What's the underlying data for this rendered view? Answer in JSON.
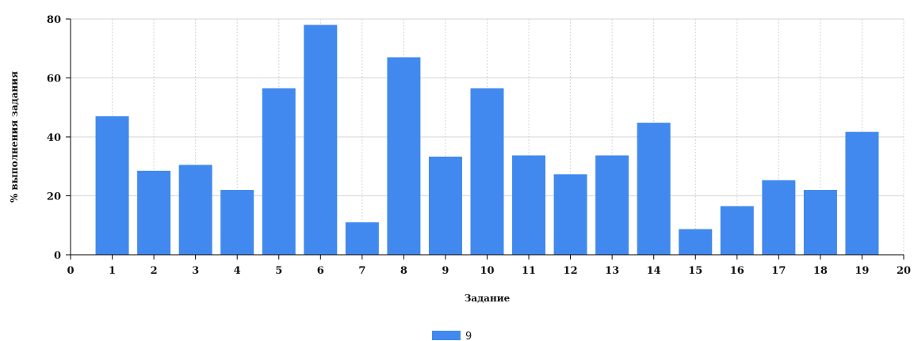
{
  "chart_data": {
    "type": "bar",
    "xlabel": "Задание",
    "ylabel": "% выполнения задания",
    "xlim": [
      0,
      20
    ],
    "ylim": [
      0,
      80
    ],
    "xticks": [
      "0",
      "1",
      "2",
      "3",
      "4",
      "5",
      "6",
      "7",
      "8",
      "9",
      "10",
      "11",
      "12",
      "13",
      "14",
      "15",
      "16",
      "17",
      "18",
      "19",
      "20"
    ],
    "yticks": [
      "0",
      "20",
      "40",
      "60",
      "80"
    ],
    "categories": [
      1,
      2,
      3,
      4,
      5,
      6,
      7,
      8,
      9,
      10,
      11,
      12,
      13,
      14,
      15,
      16,
      17,
      18,
      19
    ],
    "series": [
      {
        "name": "9",
        "color": "#4189ee",
        "values": [
          47,
          28.5,
          30.5,
          22,
          56.5,
          78,
          11,
          67,
          33.3,
          56.5,
          33.7,
          27.3,
          33.7,
          44.8,
          8.7,
          16.5,
          25.3,
          22,
          41.7
        ]
      }
    ],
    "grid": true,
    "legend": "bottom-center"
  }
}
